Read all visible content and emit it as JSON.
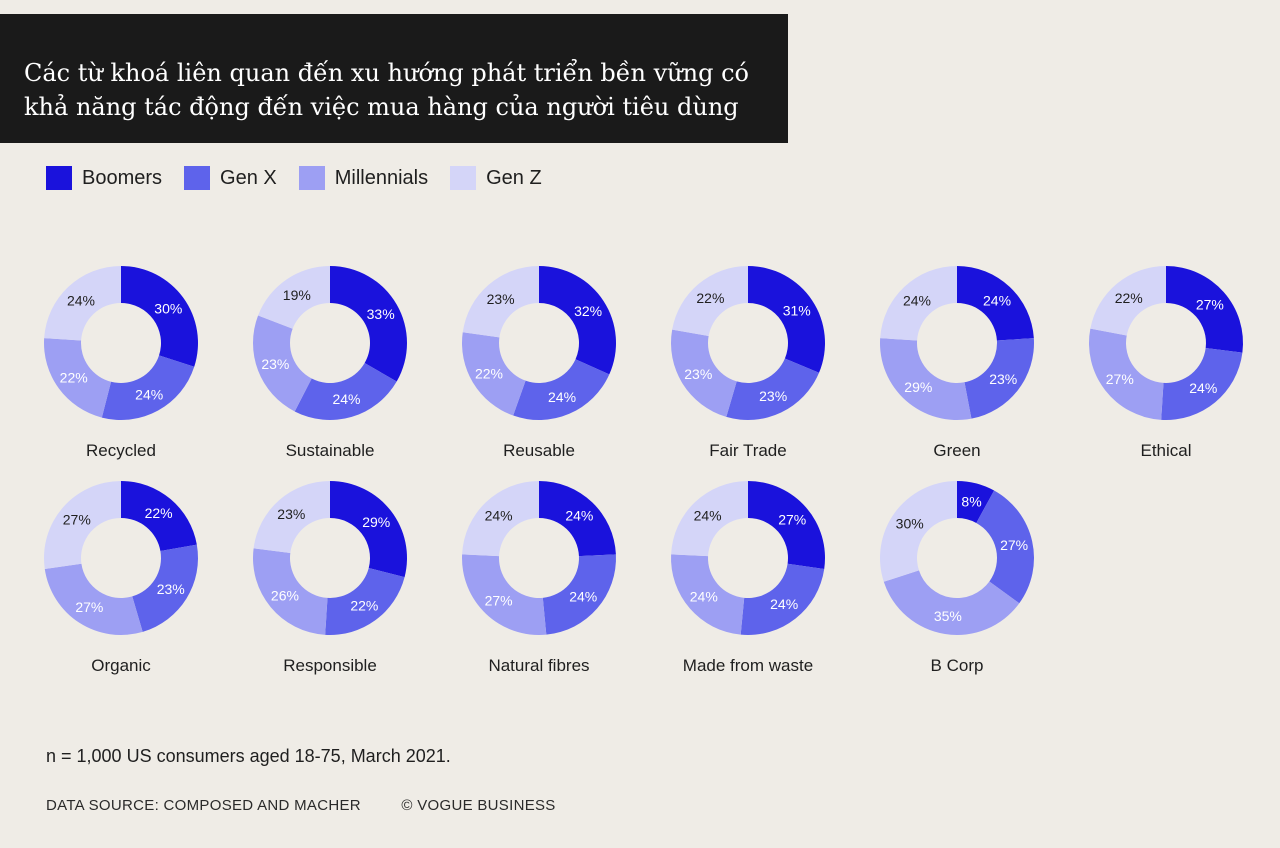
{
  "header": {
    "title": "Các từ khoá liên quan đến xu hướng phát triển bền vững có khả năng tác động đến việc mua hàng của người tiêu dùng"
  },
  "legend": [
    {
      "label": "Boomers",
      "color": "#1a12dc"
    },
    {
      "label": "Gen X",
      "color": "#5e63eb"
    },
    {
      "label": "Millennials",
      "color": "#9d9ff3"
    },
    {
      "label": "Gen Z",
      "color": "#d4d5f8"
    }
  ],
  "chart_data": {
    "type": "donut",
    "series_names": [
      "Boomers",
      "Gen X",
      "Millennials",
      "Gen Z"
    ],
    "charts": [
      {
        "label": "Recycled",
        "values": [
          30,
          24,
          22,
          24
        ]
      },
      {
        "label": "Sustainable",
        "values": [
          33,
          24,
          23,
          19
        ]
      },
      {
        "label": "Reusable",
        "values": [
          32,
          24,
          22,
          23
        ]
      },
      {
        "label": "Fair Trade",
        "values": [
          31,
          23,
          23,
          22
        ]
      },
      {
        "label": "Green",
        "values": [
          24,
          23,
          29,
          24
        ]
      },
      {
        "label": "Ethical",
        "values": [
          27,
          24,
          27,
          22
        ]
      },
      {
        "label": "Organic",
        "values": [
          22,
          23,
          27,
          27
        ]
      },
      {
        "label": "Responsible",
        "values": [
          29,
          22,
          26,
          23
        ]
      },
      {
        "label": "Natural fibres",
        "values": [
          24,
          24,
          27,
          24
        ]
      },
      {
        "label": "Made from waste",
        "values": [
          27,
          24,
          24,
          24
        ]
      },
      {
        "label": "B Corp",
        "values": [
          8,
          27,
          35,
          30
        ]
      }
    ]
  },
  "footnote": "n = 1,000 US consumers aged 18-75, March 2021.",
  "footer": {
    "source": "DATA SOURCE: COMPOSED AND MACHER",
    "credit": "© VOGUE BUSINESS"
  }
}
